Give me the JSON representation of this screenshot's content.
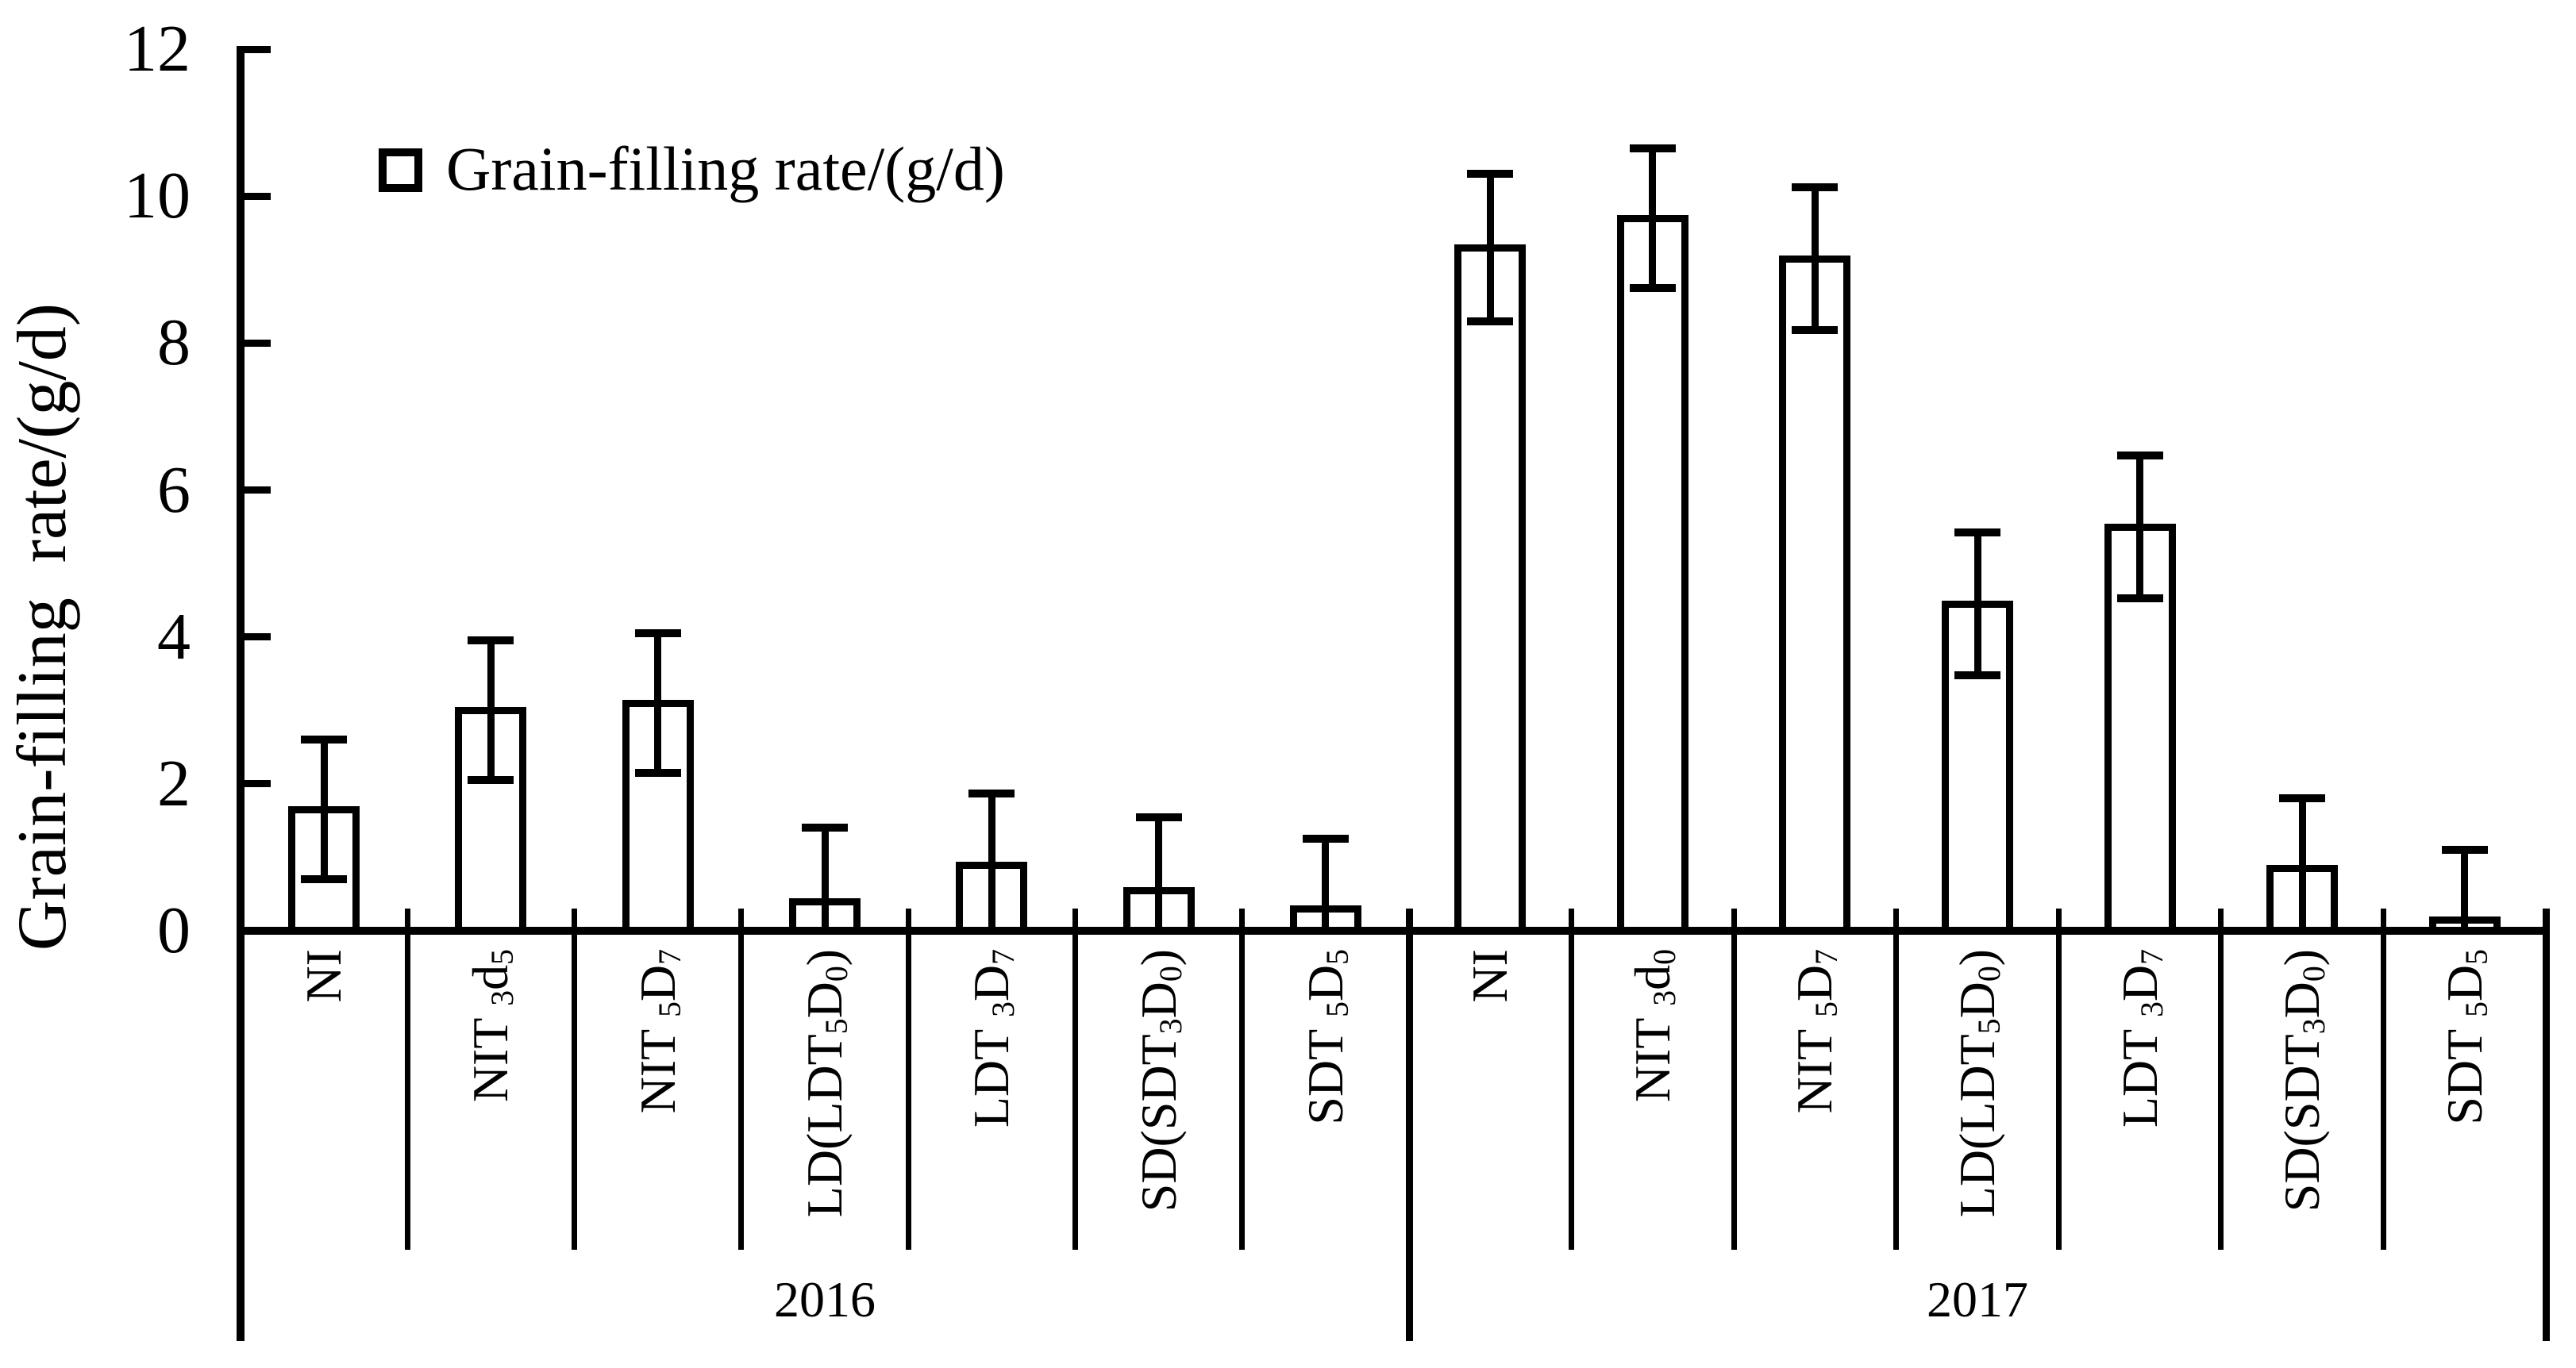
{
  "figure": {
    "legend_label": "Grain-filling rate/(g/d)",
    "y_axis_title": "Grain-filling  rate/(g/d)"
  },
  "chart_data": {
    "type": "bar",
    "title": "",
    "xlabel": "",
    "ylabel": "Grain-filling rate/(g/d)",
    "ylim": [
      0,
      12
    ],
    "yticks": [
      0,
      2,
      4,
      6,
      8,
      10,
      12
    ],
    "grid": false,
    "legend": {
      "position": "top-left",
      "entries": [
        "Grain-filling rate/(g/d)"
      ],
      "marker": "open-square"
    },
    "bar_fill_color": "#ffffff",
    "bar_border_color": "#000000",
    "error_bars": "plus-minus, lower whisker clipped at 0",
    "groups": [
      {
        "year": "2016",
        "categories": [
          "NI",
          "NIT₃d₅",
          "NIT₅D₇",
          "LD(LDT₅D₀)",
          "LDT₃D₇",
          "SD(SDT₃D₀)",
          "SDT₅D₅"
        ],
        "label_segments": [
          [
            {
              "t": "NI"
            }
          ],
          [
            {
              "t": "NIT "
            },
            {
              "t": "3",
              "sub": true
            },
            {
              "t": "d"
            },
            {
              "t": "5",
              "sub": true
            }
          ],
          [
            {
              "t": "NIT "
            },
            {
              "t": "5",
              "sub": true
            },
            {
              "t": "D"
            },
            {
              "t": "7",
              "sub": true
            }
          ],
          [
            {
              "t": "LD(LDT"
            },
            {
              "t": "5",
              "sub": true
            },
            {
              "t": "D"
            },
            {
              "t": "0",
              "sub": true
            },
            {
              "t": ")"
            }
          ],
          [
            {
              "t": "LDT "
            },
            {
              "t": "3",
              "sub": true
            },
            {
              "t": "D"
            },
            {
              "t": "7",
              "sub": true
            }
          ],
          [
            {
              "t": "SD(SDT"
            },
            {
              "t": "3",
              "sub": true
            },
            {
              "t": "D"
            },
            {
              "t": "0",
              "sub": true
            },
            {
              "t": ")"
            }
          ],
          [
            {
              "t": "SDT "
            },
            {
              "t": "5",
              "sub": true
            },
            {
              "t": "D"
            },
            {
              "t": "5",
              "sub": true
            }
          ]
        ],
        "values": [
          1.65,
          3.0,
          3.1,
          0.4,
          0.9,
          0.55,
          0.3
        ],
        "errors": [
          0.95,
          0.95,
          0.95,
          1.0,
          0.97,
          1.0,
          0.95
        ]
      },
      {
        "year": "2017",
        "categories": [
          "NI",
          "NIT₃d₀",
          "NIT₅D₇",
          "LD(LDT₅D₀)",
          "LDT₃D₇",
          "SD(SDT₃D₀)",
          "SDT₅D₅"
        ],
        "label_segments": [
          [
            {
              "t": "NI"
            }
          ],
          [
            {
              "t": "NIT "
            },
            {
              "t": "3",
              "sub": true
            },
            {
              "t": "d"
            },
            {
              "t": "0",
              "sub": true
            }
          ],
          [
            {
              "t": "NIT "
            },
            {
              "t": "5",
              "sub": true
            },
            {
              "t": "D"
            },
            {
              "t": "7",
              "sub": true
            }
          ],
          [
            {
              "t": "LD(LDT"
            },
            {
              "t": "5",
              "sub": true
            },
            {
              "t": "D"
            },
            {
              "t": "0",
              "sub": true
            },
            {
              "t": ")"
            }
          ],
          [
            {
              "t": "LDT "
            },
            {
              "t": "3",
              "sub": true
            },
            {
              "t": "D"
            },
            {
              "t": "7",
              "sub": true
            }
          ],
          [
            {
              "t": "SD(SDT"
            },
            {
              "t": "3",
              "sub": true
            },
            {
              "t": "D"
            },
            {
              "t": "0",
              "sub": true
            },
            {
              "t": ")"
            }
          ],
          [
            {
              "t": "SDT "
            },
            {
              "t": "5",
              "sub": true
            },
            {
              "t": "D"
            },
            {
              "t": "5",
              "sub": true
            }
          ]
        ],
        "values": [
          9.3,
          9.7,
          9.15,
          4.45,
          5.5,
          0.85,
          0.15
        ],
        "errors": [
          1.0,
          0.95,
          0.97,
          0.97,
          0.97,
          0.95,
          0.95
        ]
      }
    ]
  }
}
